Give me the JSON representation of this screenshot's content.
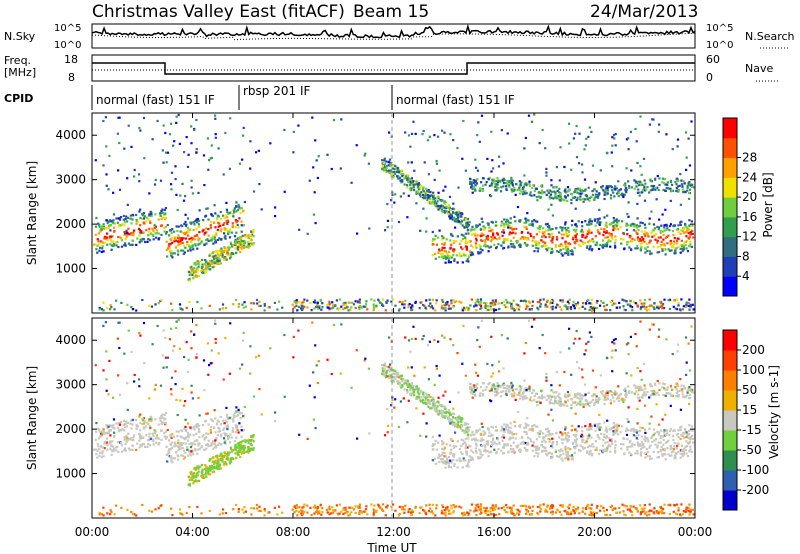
{
  "header": {
    "title": "Christmas Valley East (fitACF)",
    "beam": "Beam 15",
    "date": "24/Mar/2013"
  },
  "panels": {
    "nsky": {
      "left_label": "N.Sky",
      "left_ticks": [
        "10^5",
        "10^0"
      ],
      "right_ticks": [
        "10^5",
        "10^0"
      ],
      "right_label": "N.Search"
    },
    "freq": {
      "left_label_1": "Freq.",
      "left_label_2": "[MHz]",
      "left_ticks": [
        "18",
        "8"
      ],
      "right_ticks": [
        "60",
        "0"
      ],
      "right_label": "Nave"
    },
    "cpid": {
      "label": "CPID",
      "segments": [
        {
          "label": "normal (fast) 151 IF",
          "start_hour": 0
        },
        {
          "label": "rbsp 201 IF",
          "start_hour": 6
        },
        {
          "label": "normal (fast) 151 IF",
          "start_hour": 12
        }
      ]
    }
  },
  "chart_data": [
    {
      "type": "heatmap",
      "name": "power",
      "ylabel": "Slant Range [km]",
      "ylim": [
        0,
        4500
      ],
      "yticks": [
        "1000",
        "2000",
        "3000",
        "4000"
      ],
      "colorbar": {
        "label": "Power [dB]",
        "ticks": [
          "4",
          "8",
          "12",
          "16",
          "20",
          "24",
          "28"
        ],
        "colors": [
          "#0000ff",
          "#1f3fb8",
          "#2f6f7f",
          "#2f9f4f",
          "#6fce3f",
          "#f0e000",
          "#ff9f00",
          "#ff5000",
          "#ff0000"
        ]
      }
    },
    {
      "type": "heatmap",
      "name": "velocity",
      "ylabel": "Slant Range [km]",
      "ylim": [
        0,
        4500
      ],
      "yticks": [
        "1000",
        "2000",
        "3000",
        "4000"
      ],
      "colorbar": {
        "label": "Velocity [m s-1]",
        "ticks": [
          "200",
          "100",
          "50",
          "15",
          "-15",
          "-50",
          "-100",
          "-200"
        ],
        "colors": [
          "#0000cc",
          "#2f5fb0",
          "#2f8f4f",
          "#6fcf3f",
          "#c8c8c0",
          "#f0b000",
          "#ff8000",
          "#ff4000",
          "#ff0000"
        ]
      }
    }
  ],
  "xaxis": {
    "label": "Time UT",
    "ticks": [
      "00:00",
      "04:00",
      "08:00",
      "12:00",
      "16:00",
      "20:00",
      "00:00"
    ],
    "range_hours": [
      0,
      24
    ]
  }
}
